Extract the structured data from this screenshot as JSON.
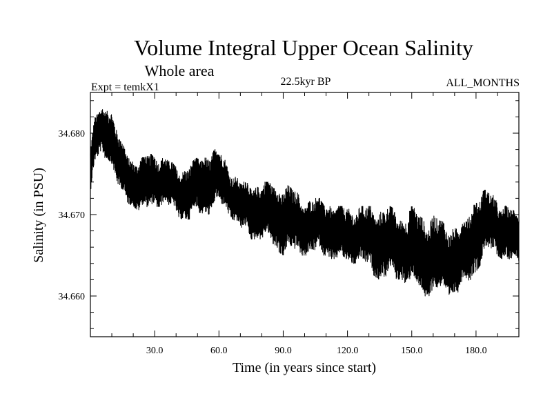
{
  "chart_data": {
    "type": "line",
    "title": "Volume Integral Upper Ocean Salinity",
    "subtitle": "Whole area",
    "experiment_label": "Expt = temkX1",
    "period_label": "22.5kyr BP",
    "months_label": "ALL_MONTHS",
    "xlabel": "Time (in years since start)",
    "ylabel": "Salinity (in PSU)",
    "xlim": [
      0,
      200
    ],
    "ylim": [
      34.655,
      34.685
    ],
    "x_ticks": [
      30,
      60,
      90,
      120,
      150,
      180
    ],
    "x_tick_labels": [
      "30.0",
      "60.0",
      "90.0",
      "120.0",
      "150.0",
      "180.0"
    ],
    "y_ticks": [
      34.66,
      34.67,
      34.68
    ],
    "y_tick_labels": [
      "34.660",
      "34.670",
      "34.680"
    ],
    "series": [
      {
        "name": "Salinity",
        "color": "#000000",
        "envelope_x": [
          0,
          2,
          5,
          8,
          10,
          14,
          20,
          25,
          30,
          35,
          40,
          45,
          50,
          55,
          60,
          65,
          70,
          75,
          80,
          85,
          90,
          95,
          100,
          105,
          110,
          115,
          120,
          125,
          130,
          135,
          140,
          145,
          150,
          155,
          160,
          165,
          170,
          175,
          180,
          185,
          190,
          195,
          200
        ],
        "envelope_low": [
          34.672,
          34.676,
          34.677,
          34.677,
          34.676,
          34.672,
          34.671,
          34.67,
          34.671,
          34.671,
          34.67,
          34.669,
          34.67,
          34.67,
          34.671,
          34.67,
          34.668,
          34.667,
          34.667,
          34.666,
          34.665,
          34.665,
          34.665,
          34.665,
          34.665,
          34.664,
          34.664,
          34.664,
          34.663,
          34.662,
          34.662,
          34.662,
          34.661,
          34.66,
          34.66,
          34.66,
          34.66,
          34.661,
          34.663,
          34.665,
          34.665,
          34.664,
          34.664
        ],
        "envelope_high": [
          34.678,
          34.682,
          34.683,
          34.684,
          34.683,
          34.679,
          34.677,
          34.677,
          34.678,
          34.677,
          34.676,
          34.676,
          34.677,
          34.678,
          34.678,
          34.676,
          34.674,
          34.674,
          34.674,
          34.674,
          34.674,
          34.673,
          34.672,
          34.672,
          34.672,
          34.671,
          34.671,
          34.671,
          34.671,
          34.671,
          34.671,
          34.67,
          34.671,
          34.67,
          34.67,
          34.669,
          34.669,
          34.669,
          34.673,
          34.673,
          34.672,
          34.671,
          34.67
        ]
      }
    ]
  }
}
